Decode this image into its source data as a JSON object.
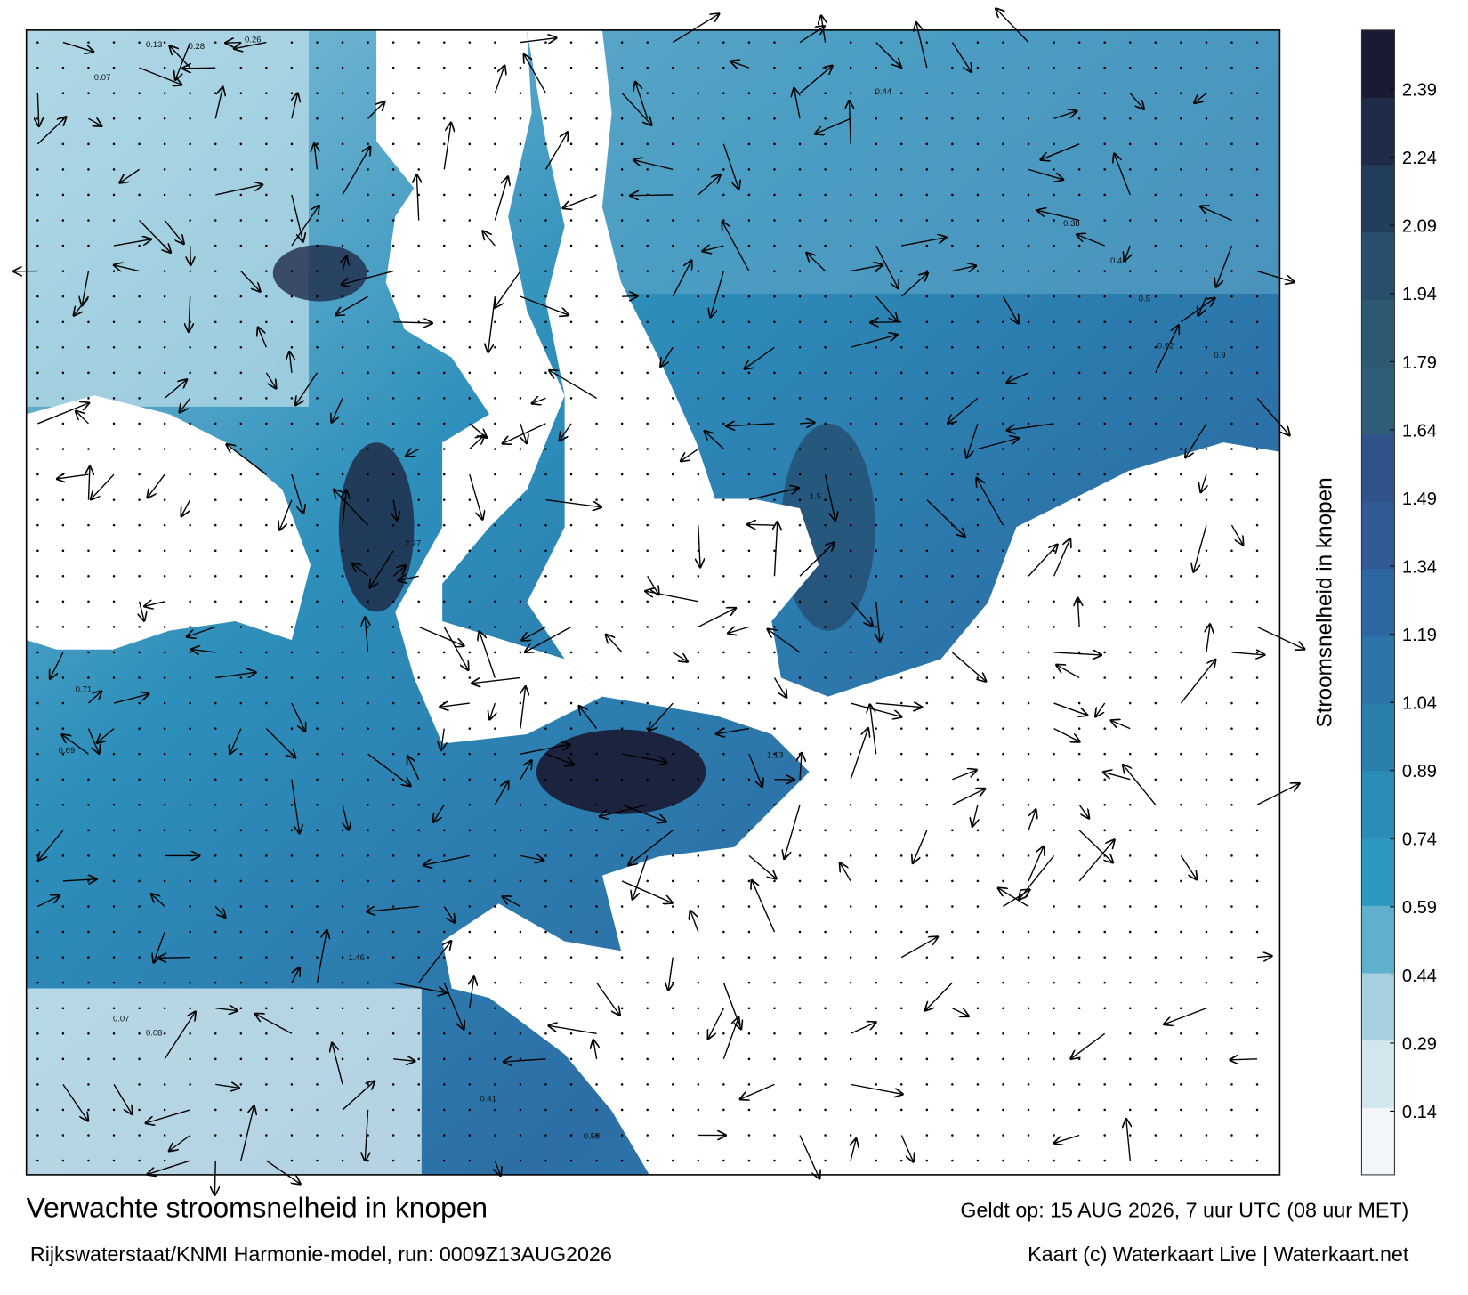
{
  "chart_data": {
    "type": "map",
    "title": "Verwachte stroomsnelheid in knopen",
    "subtitle": "Rijkswaterstaat/KNMI Harmonie-model, run: 0009Z13AUG2026",
    "valid_time": "Geldt op: 15 AUG 2026, 7 uur UTC (08 uur MET)",
    "credit": "Kaart (c) Waterkaart Live | Waterkaart.net",
    "colorbar_label": "Stroomsnelheid in knopen",
    "clim": [
      0,
      2.52
    ],
    "cticks": [
      0.14,
      0.29,
      0.44,
      0.59,
      0.74,
      0.89,
      1.04,
      1.19,
      1.34,
      1.49,
      1.64,
      1.79,
      1.94,
      2.09,
      2.24,
      2.39
    ],
    "colors": [
      "#f2f6f8",
      "#d2e6ee",
      "#a6d0df",
      "#5eb0cc",
      "#2d98bf",
      "#2a8db7",
      "#2b7fad",
      "#2b74a8",
      "#2d67a1",
      "#2f5a96",
      "#305389",
      "#2e5e78",
      "#2d5a72",
      "#2a4f6c",
      "#233d5c",
      "#1f2b48",
      "#1b1a33"
    ],
    "labels": [
      "0.13",
      "0.28",
      "0.26",
      "0.07",
      "0.44",
      "0.38",
      "0.46",
      "0.5",
      "0.62",
      "0.9",
      "1.5",
      "2.27",
      "0.71",
      "0.69",
      "1.13",
      "1.46",
      "0.08",
      "0.07",
      "0.41",
      "0.58"
    ]
  }
}
